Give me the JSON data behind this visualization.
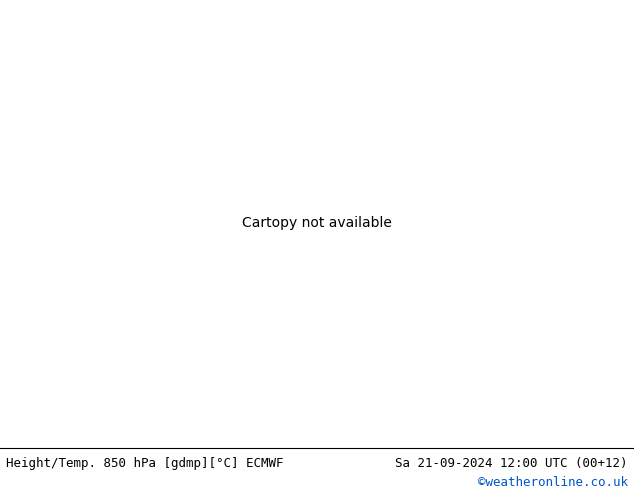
{
  "title_left": "Height/Temp. 850 hPa [gdmp][°C] ECMWF",
  "title_right": "Sa 21-09-2024 12:00 UTC (00+12)",
  "credit": "©weatheronline.co.uk",
  "ocean_color": "#d8d8d8",
  "land_color": "#c8f0a0",
  "border_color": "#a0a0a0",
  "height_color": "#000000",
  "temp_color": "#ffa500",
  "green_color": "#90ee30",
  "figsize": [
    6.34,
    4.9
  ],
  "dpi": 100,
  "extent": [
    -22,
    20,
    42,
    65
  ],
  "title_fontsize": 9,
  "credit_fontsize": 9,
  "contour_label_fontsize": 8
}
